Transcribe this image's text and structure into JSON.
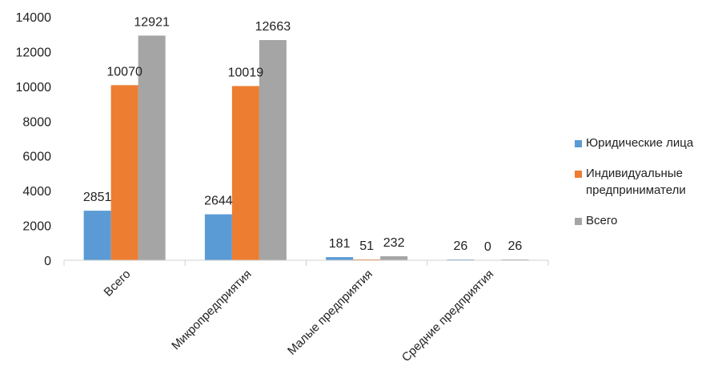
{
  "chart_data": {
    "type": "bar",
    "title": "",
    "xlabel": "",
    "ylabel": "",
    "categories": [
      "Всего",
      "Микропредприятия",
      "Малые предприятия",
      "Средние предприятия"
    ],
    "series": [
      {
        "name": "Юридические лица",
        "values": [
          2851,
          2644,
          181,
          26
        ],
        "color": "#5B9BD5"
      },
      {
        "name": "Индивидуальные предприниматели",
        "values": [
          10070,
          10019,
          51,
          0
        ],
        "color": "#ED7D31"
      },
      {
        "name": "Всего",
        "values": [
          12921,
          12663,
          232,
          26
        ],
        "color": "#A5A5A5"
      }
    ],
    "ylim": [
      0,
      14000
    ],
    "yticks": [
      0,
      2000,
      4000,
      6000,
      8000,
      10000,
      12000,
      14000
    ],
    "grid": false,
    "legend_position": "right",
    "data_labels": true
  }
}
